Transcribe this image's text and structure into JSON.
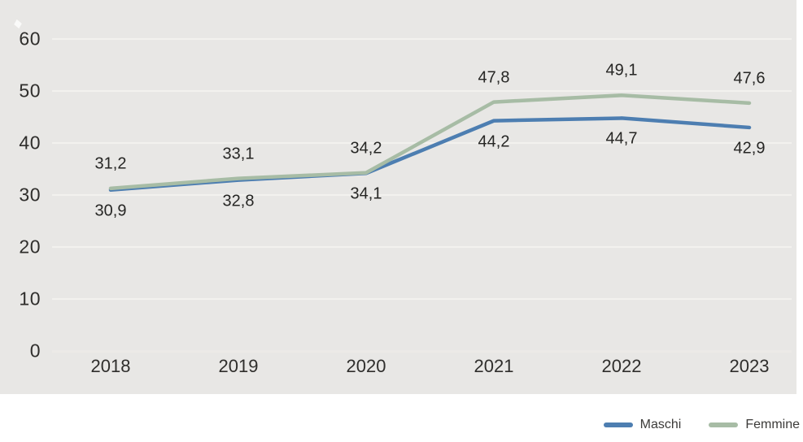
{
  "page": {
    "background": "#ffffff"
  },
  "chart": {
    "plot_background": "#e8e7e5",
    "grid_color": "#f2f1ee",
    "zero_line_color": "#eceae7",
    "axis_text_color": "#2f2e2c",
    "data_label_color": "#262624"
  },
  "chart_data": {
    "type": "line",
    "title": "",
    "xlabel": "",
    "ylabel": "",
    "categories": [
      "2018",
      "2019",
      "2020",
      "2021",
      "2022",
      "2023"
    ],
    "series": [
      {
        "name": "Maschi",
        "color": "#4d7eb1",
        "values": [
          30.9,
          32.8,
          34.1,
          44.2,
          44.7,
          42.9
        ],
        "labels": [
          "30,9",
          "32,8",
          "34,1",
          "44,2",
          "44,7",
          "42,9"
        ],
        "label_side": "below"
      },
      {
        "name": "Femmine",
        "color": "#a7bca5",
        "values": [
          31.2,
          33.1,
          34.2,
          47.8,
          49.1,
          47.6
        ],
        "labels": [
          "31,2",
          "33,1",
          "34,2",
          "47,8",
          "49,1",
          "47,6"
        ],
        "label_side": "above"
      }
    ],
    "ylim": [
      0,
      60
    ],
    "yticks": [
      0,
      10,
      20,
      30,
      40,
      50,
      60
    ],
    "grid": true,
    "legend_position": "bottom-right",
    "decimal_separator": ","
  },
  "legend": {
    "items": [
      {
        "label": "Maschi",
        "color": "#4d7eb1"
      },
      {
        "label": "Femmine",
        "color": "#a7bca5"
      }
    ]
  }
}
